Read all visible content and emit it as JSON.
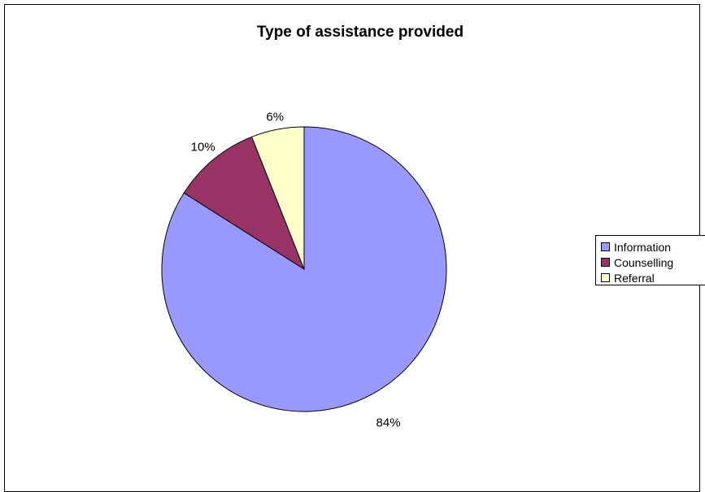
{
  "chart_data": {
    "type": "pie",
    "title": "Type of assistance provided",
    "categories": [
      "Information",
      "Counselling",
      "Referral"
    ],
    "values": [
      84,
      10,
      6
    ],
    "value_labels": [
      "84%",
      "10%",
      "6%"
    ],
    "colors": [
      "#9999ff",
      "#993366",
      "#ffffcc"
    ],
    "legend_position": "right",
    "grid": false
  }
}
